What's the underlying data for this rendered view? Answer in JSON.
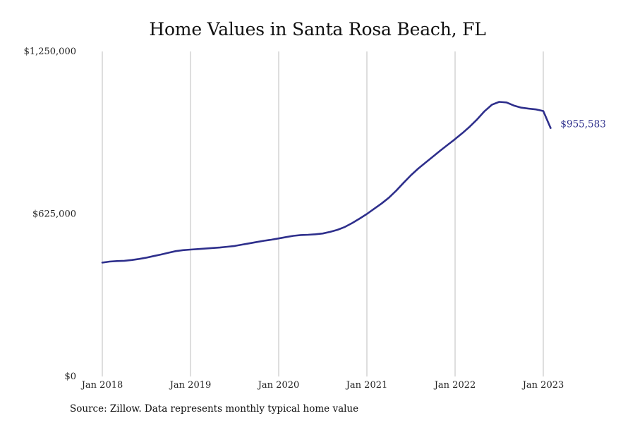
{
  "chart_data": {
    "type": "line",
    "title": "Home Values in Santa Rosa Beach, FL",
    "xlabel": "",
    "ylabel": "",
    "x_ticks": [
      "Jan 2018",
      "Jan 2019",
      "Jan 2020",
      "Jan 2021",
      "Jan 2022",
      "Jan 2023"
    ],
    "y_ticks": [
      "$0",
      "$625,000",
      "$1,250,000"
    ],
    "ylim": [
      0,
      1250000
    ],
    "xlim": [
      "2018-01",
      "2023-09"
    ],
    "grid": "vertical",
    "legend": "none",
    "series": [
      {
        "color": "#2e2f8c",
        "end_label": "$955,583",
        "points": [
          [
            "2018-01",
            438000
          ],
          [
            "2018-02",
            442000
          ],
          [
            "2018-03",
            444000
          ],
          [
            "2018-04",
            445000
          ],
          [
            "2018-05",
            448000
          ],
          [
            "2018-06",
            452000
          ],
          [
            "2018-07",
            457000
          ],
          [
            "2018-08",
            463000
          ],
          [
            "2018-09",
            469000
          ],
          [
            "2018-10",
            476000
          ],
          [
            "2018-11",
            482000
          ],
          [
            "2018-12",
            486000
          ],
          [
            "2019-01",
            488000
          ],
          [
            "2019-02",
            490000
          ],
          [
            "2019-03",
            492000
          ],
          [
            "2019-04",
            494000
          ],
          [
            "2019-05",
            496000
          ],
          [
            "2019-06",
            499000
          ],
          [
            "2019-07",
            502000
          ],
          [
            "2019-08",
            507000
          ],
          [
            "2019-09",
            512000
          ],
          [
            "2019-10",
            517000
          ],
          [
            "2019-11",
            522000
          ],
          [
            "2019-12",
            526000
          ],
          [
            "2020-01",
            531000
          ],
          [
            "2020-02",
            536000
          ],
          [
            "2020-03",
            541000
          ],
          [
            "2020-04",
            544000
          ],
          [
            "2020-05",
            545000
          ],
          [
            "2020-06",
            547000
          ],
          [
            "2020-07",
            550000
          ],
          [
            "2020-08",
            556000
          ],
          [
            "2020-09",
            564000
          ],
          [
            "2020-10",
            575000
          ],
          [
            "2020-11",
            590000
          ],
          [
            "2020-12",
            607000
          ],
          [
            "2021-01",
            625000
          ],
          [
            "2021-02",
            645000
          ],
          [
            "2021-03",
            665000
          ],
          [
            "2021-04",
            688000
          ],
          [
            "2021-05",
            715000
          ],
          [
            "2021-06",
            745000
          ],
          [
            "2021-07",
            774000
          ],
          [
            "2021-08",
            800000
          ],
          [
            "2021-09",
            823000
          ],
          [
            "2021-10",
            846000
          ],
          [
            "2021-11",
            869000
          ],
          [
            "2021-12",
            891000
          ],
          [
            "2022-01",
            913000
          ],
          [
            "2022-02",
            936000
          ],
          [
            "2022-03",
            961000
          ],
          [
            "2022-04",
            989000
          ],
          [
            "2022-05",
            1020000
          ],
          [
            "2022-06",
            1045000
          ],
          [
            "2022-07",
            1056000
          ],
          [
            "2022-08",
            1054000
          ],
          [
            "2022-09",
            1042000
          ],
          [
            "2022-10",
            1034000
          ],
          [
            "2022-11",
            1030000
          ],
          [
            "2022-12",
            1027000
          ],
          [
            "2023-01",
            1021000
          ],
          [
            "2023-02",
            955583
          ]
        ]
      }
    ]
  },
  "source_note": "Source: Zillow. Data represents monthly typical home value"
}
